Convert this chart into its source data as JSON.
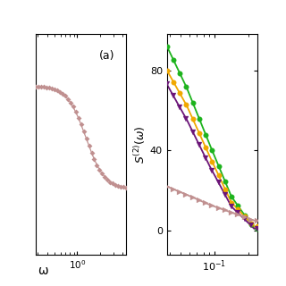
{
  "left_panel": {
    "label_a": "(a)",
    "xlabel": "ω",
    "xlim_log": [
      -0.55,
      0.65
    ],
    "ylim": [
      -0.15,
      0.32
    ],
    "color": "#c09090",
    "markersize": 3.0,
    "n_markers": 35
  },
  "right_panel": {
    "ylabel": "$S^{(2)}(\\omega)$",
    "ylim": [
      -12,
      98
    ],
    "yticks": [
      0,
      40,
      80
    ],
    "xlim_log": [
      -1.42,
      -0.62
    ],
    "lines": [
      {
        "color": "#1db31d",
        "marker": "o",
        "markersize": 4.0
      },
      {
        "color": "#f0a800",
        "marker": "o",
        "markersize": 4.0
      },
      {
        "color": "#6b1578",
        "marker": "v",
        "markersize": 4.0
      },
      {
        "color": "#c09090",
        "marker": ">",
        "markersize": 4.0
      }
    ]
  },
  "bg_color": "#ffffff",
  "figsize": [
    3.2,
    3.2
  ],
  "dpi": 100
}
